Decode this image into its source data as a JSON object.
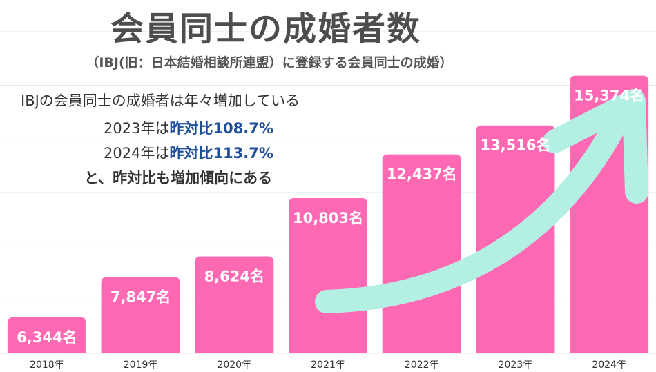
{
  "title": "会員同士の成婚者数",
  "subtitle": "（IBJ(旧：日本結婚相談所連盟）に登録する会員同士の成婚）",
  "notes": {
    "line1": "IBJの会員同士の成婚者は年々増加している",
    "line2_prefix": "2023年は",
    "line2_highlight": "昨対比108.7%",
    "line3_prefix": "2024年は",
    "line3_highlight": "昨対比113.7%",
    "line4": "と、昨対比も増加傾向にある"
  },
  "colors": {
    "bar": "#ff69b4",
    "arrow": "#b3efe3",
    "highlight_text": "#1f4e9c",
    "title": "#4d4d4d"
  },
  "chart_data": {
    "type": "bar",
    "categories": [
      "2018年",
      "2019年",
      "2020年",
      "2021年",
      "2022年",
      "2023年",
      "2024年"
    ],
    "values": [
      6344,
      7847,
      8624,
      10803,
      12437,
      13516,
      15374
    ],
    "value_labels": [
      "6,344名",
      "7,847名",
      "8,624名",
      "10,803名",
      "12,437名",
      "13,516名",
      "15,374名"
    ],
    "ylim": [
      5000,
      16500
    ],
    "grid": true,
    "annotation": "upward-trend-arrow"
  }
}
